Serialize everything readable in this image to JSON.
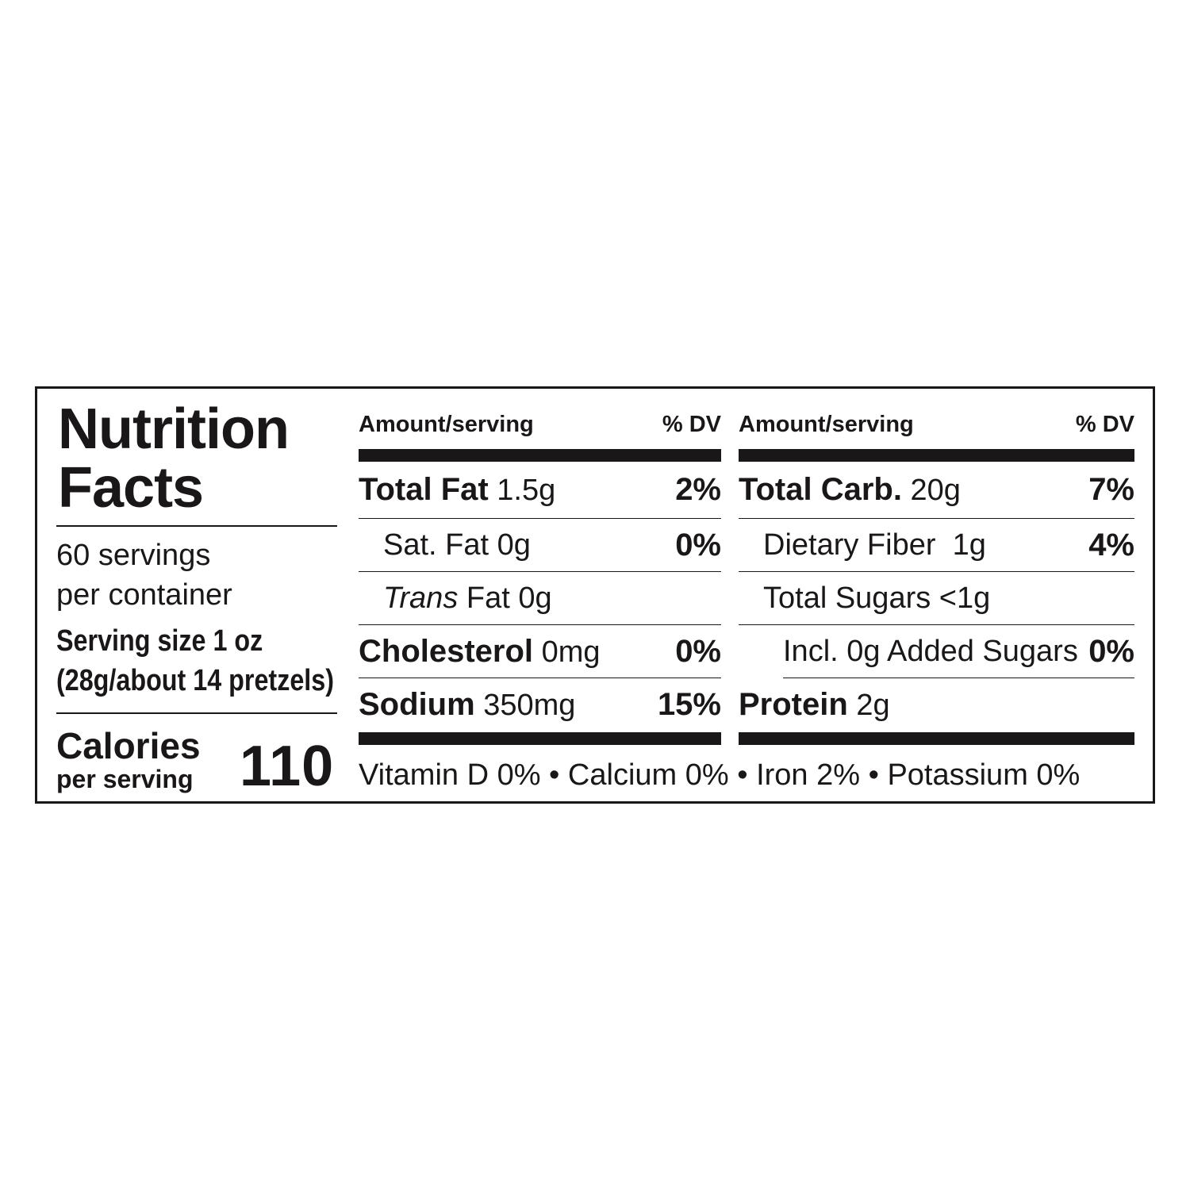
{
  "title_line1": "Nutrition",
  "title_line2": "Facts",
  "servings_line1": "60 servings",
  "servings_line2": "per container",
  "serving_size": "Serving size 1 oz",
  "serving_detail": "(28g/about 14 pretzels)",
  "calories_label": "Calories",
  "calories_sub": "per serving",
  "calories_value": "110",
  "left_column": {
    "header_amount": "Amount/serving",
    "header_dv": "% DV",
    "rows": [
      {
        "name": "Total Fat",
        "amount": "1.5g",
        "dv": "2%"
      },
      {
        "name": "Sat. Fat",
        "amount": "0g",
        "dv": "0%"
      },
      {
        "name": "Trans",
        "name_suffix": "Fat",
        "amount": "0g",
        "dv": ""
      },
      {
        "name": "Cholesterol",
        "amount": "0mg",
        "dv": "0%"
      },
      {
        "name": "Sodium",
        "amount": "350mg",
        "dv": "15%"
      }
    ]
  },
  "right_column": {
    "header_amount": "Amount/serving",
    "header_dv": "% DV",
    "rows": [
      {
        "name": "Total Carb.",
        "amount": "20g",
        "dv": "7%"
      },
      {
        "name": "Dietary Fiber",
        "amount": "1g",
        "dv": "4%"
      },
      {
        "name": "Total Sugars",
        "amount": "<1g",
        "dv": ""
      },
      {
        "name": "Incl. 0g Added Sugars",
        "amount": "",
        "dv": "0%"
      },
      {
        "name": "Protein",
        "amount": "2g",
        "dv": ""
      }
    ]
  },
  "vitamins": "Vitamin D 0% • Calcium 0% • Iron 2% • Potassium 0%"
}
